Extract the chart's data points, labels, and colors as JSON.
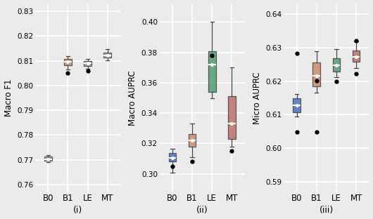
{
  "subplot_titles": [
    "(i)",
    "(ii)",
    "(iii)"
  ],
  "xlabels": [
    "B0",
    "B1",
    "LE",
    "MT"
  ],
  "ylabels": [
    "Macro F1",
    "Macro AUPRC",
    "Micro AUPRC"
  ],
  "plot1": {
    "ylim": [
      0.757,
      0.833
    ],
    "yticks": [
      0.76,
      0.77,
      0.78,
      0.79,
      0.8,
      0.81,
      0.82,
      0.83
    ],
    "boxes": [
      {
        "q1": 0.7695,
        "median": 0.7702,
        "q3": 0.7712,
        "whislo": 0.769,
        "whishi": 0.7718,
        "fliers": [],
        "color": "#999999"
      },
      {
        "q1": 0.8082,
        "median": 0.8095,
        "q3": 0.8108,
        "whislo": 0.8065,
        "whishi": 0.8118,
        "fliers": [
          0.8052
        ],
        "color": "#cd8c6a"
      },
      {
        "q1": 0.8078,
        "median": 0.809,
        "q3": 0.81,
        "whislo": 0.8068,
        "whishi": 0.8108,
        "fliers": [
          0.8058
        ],
        "color": "#999999"
      },
      {
        "q1": 0.8112,
        "median": 0.8122,
        "q3": 0.8132,
        "whislo": 0.8102,
        "whishi": 0.8148,
        "fliers": [],
        "color": "#999999"
      }
    ]
  },
  "plot2": {
    "ylim": [
      0.288,
      0.412
    ],
    "yticks": [
      0.3,
      0.32,
      0.34,
      0.36,
      0.38,
      0.4
    ],
    "boxes": [
      {
        "q1": 0.308,
        "median": 0.3105,
        "q3": 0.3135,
        "whislo": 0.3005,
        "whishi": 0.3165,
        "fliers": [
          0.305
        ],
        "color": "#4472c4"
      },
      {
        "q1": 0.318,
        "median": 0.322,
        "q3": 0.326,
        "whislo": 0.311,
        "whishi": 0.333,
        "fliers": [
          0.308
        ],
        "color": "#cd8c6a"
      },
      {
        "q1": 0.354,
        "median": 0.372,
        "q3": 0.381,
        "whislo": 0.35,
        "whishi": 0.4,
        "fliers": [
          0.378
        ],
        "color": "#4d9e6f"
      },
      {
        "q1": 0.323,
        "median": 0.333,
        "q3": 0.351,
        "whislo": 0.318,
        "whishi": 0.37,
        "fliers": [
          0.315
        ],
        "color": "#b97068"
      }
    ]
  },
  "plot3": {
    "ylim": [
      0.587,
      0.643
    ],
    "yticks": [
      0.59,
      0.6,
      0.61,
      0.62,
      0.63,
      0.64
    ],
    "boxes": [
      {
        "q1": 0.6108,
        "median": 0.6128,
        "q3": 0.6148,
        "whislo": 0.6095,
        "whishi": 0.6162,
        "fliers": [
          0.6282,
          0.6048
        ],
        "color": "#4472c4"
      },
      {
        "q1": 0.6185,
        "median": 0.6215,
        "q3": 0.6255,
        "whislo": 0.6165,
        "whishi": 0.6288,
        "fliers": [
          0.6202,
          0.6048
        ],
        "color": "#cd8c6a"
      },
      {
        "q1": 0.6228,
        "median": 0.6248,
        "q3": 0.6268,
        "whislo": 0.6212,
        "whishi": 0.6295,
        "fliers": [
          0.62
        ],
        "color": "#4d9e6f"
      },
      {
        "q1": 0.6258,
        "median": 0.6272,
        "q3": 0.6292,
        "whislo": 0.6238,
        "whishi": 0.6318,
        "fliers": [
          0.632,
          0.6222
        ],
        "color": "#b97068"
      }
    ]
  },
  "box_width": 0.38,
  "flier_marker": "o",
  "flier_size": 3.5,
  "median_color": "white",
  "whisker_color": "#444444",
  "box_edge_color": "#444444",
  "background_color": "#ebebeb",
  "grid_color": "white"
}
